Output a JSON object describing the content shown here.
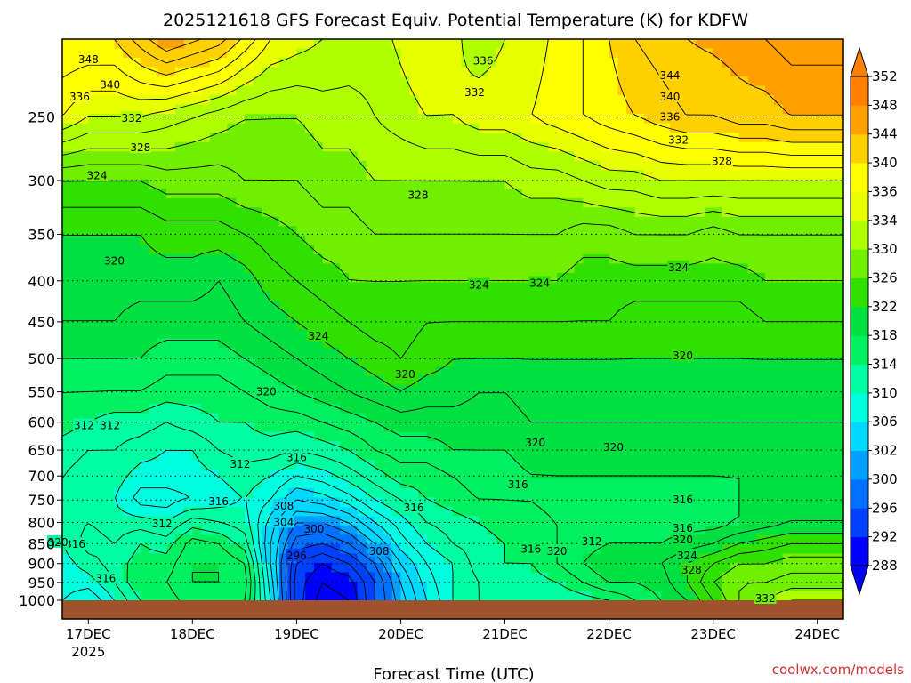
{
  "page": {
    "title": "2025121618 GFS Forecast Equiv. Potential Temperature (K) for KDFW",
    "credit": "coolwx.com/models"
  },
  "colors": {
    "ground": "#a0522d",
    "frame": "#000000",
    "credit": "#d03030",
    "contour": "#000000",
    "grid": "#000000",
    "scale": [
      "#0000ff",
      "#0040ff",
      "#0070ff",
      "#00a0ff",
      "#00d8ff",
      "#00ffe0",
      "#00ffa0",
      "#00f060",
      "#00e040",
      "#30e000",
      "#70f000",
      "#b0ff00",
      "#e8ff00",
      "#ffff00",
      "#ffd000",
      "#ffa000",
      "#ff8000"
    ]
  },
  "chart_data": {
    "type": "heatmap",
    "variable": "Equiv. Potential Temperature (K)",
    "station": "KDFW",
    "model": "GFS",
    "init": "2025121618",
    "xlabel": "Forecast Time (UTC)",
    "ylabel": "",
    "x_tick_labels": [
      "17DEC",
      "18DEC",
      "19DEC",
      "20DEC",
      "21DEC",
      "22DEC",
      "23DEC",
      "24DEC"
    ],
    "x_tick_sublabel": "2025",
    "x_hours_at_ticks": [
      6,
      30,
      54,
      78,
      102,
      126,
      150,
      174
    ],
    "x_range_hours": [
      0,
      180
    ],
    "y_ticks_hpa": [
      250,
      300,
      350,
      400,
      450,
      500,
      550,
      600,
      650,
      700,
      750,
      800,
      850,
      900,
      950,
      1000
    ],
    "y_range_hpa": [
      200,
      1000
    ],
    "y_scale": "log-pressure",
    "grid_horizontal": "dotted",
    "colorbar": {
      "ticks": [
        288,
        292,
        296,
        300,
        302,
        306,
        310,
        314,
        318,
        322,
        326,
        330,
        334,
        336,
        340,
        344,
        348,
        352
      ],
      "min": 288,
      "max": 352,
      "extend": "both"
    },
    "profiles_hpa": [
      250,
      300,
      350,
      400,
      450,
      500,
      550,
      600,
      650,
      700,
      750,
      800,
      850,
      900,
      950,
      1000
    ],
    "profiles": [
      {
        "hour": 0,
        "values": [
          336,
          326,
          322,
          321,
          320,
          318,
          316,
          315,
          313,
          312,
          312,
          311,
          310,
          309,
          309,
          308
        ]
      },
      {
        "hour": 6,
        "values": [
          334,
          326,
          322,
          321,
          320,
          318,
          316,
          314,
          312,
          311,
          310,
          312,
          313,
          311,
          309,
          306
        ]
      },
      {
        "hour": 12,
        "values": [
          334,
          326,
          322,
          321,
          320,
          318,
          316,
          313,
          312,
          311,
          310,
          311,
          312,
          313,
          312,
          310
        ]
      },
      {
        "hour": 18,
        "values": [
          334,
          326,
          322,
          321,
          319,
          318,
          316,
          313,
          311,
          309,
          307,
          311,
          314,
          315,
          316,
          314
        ]
      },
      {
        "hour": 24,
        "values": [
          333,
          327,
          323,
          321,
          319,
          317,
          315,
          312,
          310,
          309,
          307,
          310,
          313,
          315,
          316,
          315
        ]
      },
      {
        "hour": 30,
        "values": [
          332,
          327,
          323,
          321,
          319,
          317,
          315,
          313,
          310,
          309,
          308,
          313,
          317,
          318,
          318,
          317
        ]
      },
      {
        "hour": 36,
        "values": [
          331,
          327,
          323,
          320,
          319,
          317,
          315,
          314,
          312,
          310,
          309,
          312,
          316,
          318,
          318,
          317
        ]
      },
      {
        "hour": 42,
        "values": [
          330,
          328,
          324,
          321,
          320,
          318,
          316,
          314,
          313,
          311,
          310,
          311,
          313,
          316,
          317,
          316
        ]
      },
      {
        "hour": 48,
        "values": [
          330,
          328,
          325,
          323,
          321,
          319,
          317,
          315,
          313,
          310,
          308,
          305,
          304,
          304,
          305,
          306
        ]
      },
      {
        "hour": 54,
        "values": [
          330,
          328,
          326,
          324,
          322,
          320,
          318,
          315,
          312,
          308,
          304,
          300,
          297,
          294,
          293,
          293
        ]
      },
      {
        "hour": 60,
        "values": [
          331,
          329,
          327,
          325,
          323,
          321,
          319,
          316,
          313,
          309,
          305,
          300,
          296,
          292,
          290,
          289
        ]
      },
      {
        "hour": 66,
        "values": [
          331,
          329,
          327,
          326,
          324,
          322,
          320,
          317,
          314,
          311,
          307,
          302,
          298,
          294,
          291,
          290
        ]
      },
      {
        "hour": 72,
        "values": [
          332,
          330,
          328,
          326,
          325,
          323,
          321,
          318,
          316,
          313,
          310,
          306,
          302,
          298,
          296,
          296
        ]
      },
      {
        "hour": 78,
        "values": [
          333,
          330,
          328,
          326,
          325,
          324,
          322,
          319,
          317,
          315,
          312,
          309,
          307,
          304,
          302,
          301
        ]
      },
      {
        "hour": 84,
        "values": [
          334,
          330,
          328,
          326,
          324,
          323,
          321,
          319,
          317,
          315,
          314,
          312,
          310,
          308,
          307,
          306
        ]
      },
      {
        "hour": 90,
        "values": [
          334,
          330,
          328,
          326,
          324,
          322,
          321,
          319,
          318,
          316,
          315,
          313,
          312,
          310,
          310,
          310
        ]
      },
      {
        "hour": 96,
        "values": [
          335,
          330,
          328,
          326,
          324,
          322,
          320,
          319,
          318,
          317,
          316,
          314,
          313,
          313,
          312,
          312
        ]
      },
      {
        "hour": 102,
        "values": [
          335,
          330,
          328,
          326,
          324,
          322,
          320,
          319,
          318,
          317,
          316,
          315,
          314,
          314,
          313,
          312
        ]
      },
      {
        "hour": 108,
        "values": [
          336,
          331,
          328,
          326,
          324,
          322,
          321,
          320,
          319,
          318,
          316,
          315,
          315,
          314,
          313,
          312
        ]
      },
      {
        "hour": 114,
        "values": [
          337,
          331,
          328,
          326,
          324,
          322,
          321,
          320,
          319,
          318,
          317,
          316,
          316,
          316,
          314,
          312
        ]
      },
      {
        "hour": 120,
        "values": [
          338,
          332,
          327,
          325,
          324,
          322,
          321,
          320,
          319,
          318,
          317,
          316,
          317,
          318,
          316,
          313
        ]
      },
      {
        "hour": 126,
        "values": [
          339,
          333,
          327,
          325,
          324,
          322,
          321,
          320,
          319,
          318,
          317,
          317,
          318,
          320,
          318,
          314
        ]
      },
      {
        "hour": 132,
        "values": [
          340,
          333,
          328,
          325,
          323,
          322,
          321,
          320,
          319,
          318,
          317,
          317,
          318,
          320,
          318,
          316
        ]
      },
      {
        "hour": 138,
        "values": [
          341,
          334,
          328,
          325,
          323,
          322,
          321,
          320,
          319,
          318,
          317,
          317,
          318,
          320,
          319,
          318
        ]
      },
      {
        "hour": 144,
        "values": [
          342,
          334,
          328,
          325,
          323,
          322,
          321,
          320,
          319,
          318,
          317,
          317,
          319,
          322,
          322,
          320
        ]
      },
      {
        "hour": 150,
        "values": [
          342,
          334,
          327,
          325,
          323,
          322,
          321,
          320,
          319,
          318,
          317,
          317,
          320,
          324,
          326,
          324
        ]
      },
      {
        "hour": 156,
        "values": [
          343,
          334,
          328,
          325,
          323,
          322,
          321,
          320,
          319,
          318,
          318,
          318,
          322,
          326,
          328,
          328
        ]
      },
      {
        "hour": 162,
        "values": [
          343,
          334,
          328,
          326,
          324,
          322,
          321,
          320,
          319,
          318,
          318,
          319,
          323,
          326,
          328,
          330
        ]
      },
      {
        "hour": 168,
        "values": [
          344,
          334,
          328,
          326,
          324,
          322,
          321,
          320,
          319,
          318,
          318,
          320,
          324,
          327,
          329,
          332
        ]
      },
      {
        "hour": 174,
        "values": [
          344,
          334,
          328,
          326,
          324,
          322,
          321,
          320,
          319,
          318,
          318,
          320,
          324,
          327,
          329,
          332
        ]
      },
      {
        "hour": 180,
        "values": [
          344,
          334,
          328,
          326,
          324,
          322,
          321,
          320,
          319,
          318,
          318,
          320,
          324,
          327,
          329,
          332
        ]
      }
    ],
    "top_values": [
      {
        "hour": 0,
        "value": 340
      },
      {
        "hour": 12,
        "value": 340
      },
      {
        "hour": 24,
        "value": 346
      },
      {
        "hour": 36,
        "value": 343
      },
      {
        "hour": 48,
        "value": 336
      },
      {
        "hour": 60,
        "value": 334
      },
      {
        "hour": 72,
        "value": 333
      },
      {
        "hour": 84,
        "value": 336
      },
      {
        "hour": 96,
        "value": 333
      },
      {
        "hour": 108,
        "value": 335
      },
      {
        "hour": 120,
        "value": 338
      },
      {
        "hour": 132,
        "value": 342
      },
      {
        "hour": 144,
        "value": 344
      },
      {
        "hour": 156,
        "value": 345
      },
      {
        "hour": 168,
        "value": 347
      },
      {
        "hour": 180,
        "value": 347
      }
    ],
    "contour_labels": [
      {
        "text": "348",
        "hour": 6,
        "hpa": 212
      },
      {
        "text": "340",
        "hour": 11,
        "hpa": 228
      },
      {
        "text": "336",
        "hour": 4,
        "hpa": 236
      },
      {
        "text": "332",
        "hour": 16,
        "hpa": 251
      },
      {
        "text": "328",
        "hour": 18,
        "hpa": 273
      },
      {
        "text": "324",
        "hour": 8,
        "hpa": 296
      },
      {
        "text": "320",
        "hour": 12,
        "hpa": 378
      },
      {
        "text": "312",
        "hour": 5,
        "hpa": 606
      },
      {
        "text": "312",
        "hour": 11,
        "hpa": 606
      },
      {
        "text": "312",
        "hour": 23,
        "hpa": 803
      },
      {
        "text": "316",
        "hour": 3,
        "hpa": 852
      },
      {
        "text": "320",
        "hour": -1,
        "hpa": 847
      },
      {
        "text": "316",
        "hour": 10,
        "hpa": 940
      },
      {
        "text": "312",
        "hour": 41,
        "hpa": 677
      },
      {
        "text": "316",
        "hour": 36,
        "hpa": 753
      },
      {
        "text": "308",
        "hour": 51,
        "hpa": 763
      },
      {
        "text": "304",
        "hour": 51,
        "hpa": 800
      },
      {
        "text": "300",
        "hour": 58,
        "hpa": 815
      },
      {
        "text": "296",
        "hour": 54,
        "hpa": 880
      },
      {
        "text": "308",
        "hour": 73,
        "hpa": 869
      },
      {
        "text": "316",
        "hour": 54,
        "hpa": 664
      },
      {
        "text": "320",
        "hour": 47,
        "hpa": 550
      },
      {
        "text": "324",
        "hour": 59,
        "hpa": 469
      },
      {
        "text": "320",
        "hour": 79,
        "hpa": 523
      },
      {
        "text": "316",
        "hour": 81,
        "hpa": 767
      },
      {
        "text": "328",
        "hour": 82,
        "hpa": 313
      },
      {
        "text": "324",
        "hour": 96,
        "hpa": 405
      },
      {
        "text": "324",
        "hour": 110,
        "hpa": 403
      },
      {
        "text": "320",
        "hour": 109,
        "hpa": 637
      },
      {
        "text": "316",
        "hour": 105,
        "hpa": 718
      },
      {
        "text": "316",
        "hour": 108,
        "hpa": 864
      },
      {
        "text": "320",
        "hour": 114,
        "hpa": 869
      },
      {
        "text": "312",
        "hour": 122,
        "hpa": 845
      },
      {
        "text": "320",
        "hour": 127,
        "hpa": 645
      },
      {
        "text": "316",
        "hour": 143,
        "hpa": 750
      },
      {
        "text": "316",
        "hour": 143,
        "hpa": 813
      },
      {
        "text": "320",
        "hour": 143,
        "hpa": 841
      },
      {
        "text": "324",
        "hour": 144,
        "hpa": 880
      },
      {
        "text": "328",
        "hour": 145,
        "hpa": 917
      },
      {
        "text": "320",
        "hour": 143,
        "hpa": 496
      },
      {
        "text": "324",
        "hour": 142,
        "hpa": 385
      },
      {
        "text": "328",
        "hour": 152,
        "hpa": 284
      },
      {
        "text": "332",
        "hour": 142,
        "hpa": 267
      },
      {
        "text": "336",
        "hour": 140,
        "hpa": 250
      },
      {
        "text": "340",
        "hour": 140,
        "hpa": 236
      },
      {
        "text": "344",
        "hour": 140,
        "hpa": 222
      },
      {
        "text": "332",
        "hour": 95,
        "hpa": 233
      },
      {
        "text": "336",
        "hour": 97,
        "hpa": 213
      },
      {
        "text": "332",
        "hour": 162,
        "hpa": 995
      }
    ]
  }
}
